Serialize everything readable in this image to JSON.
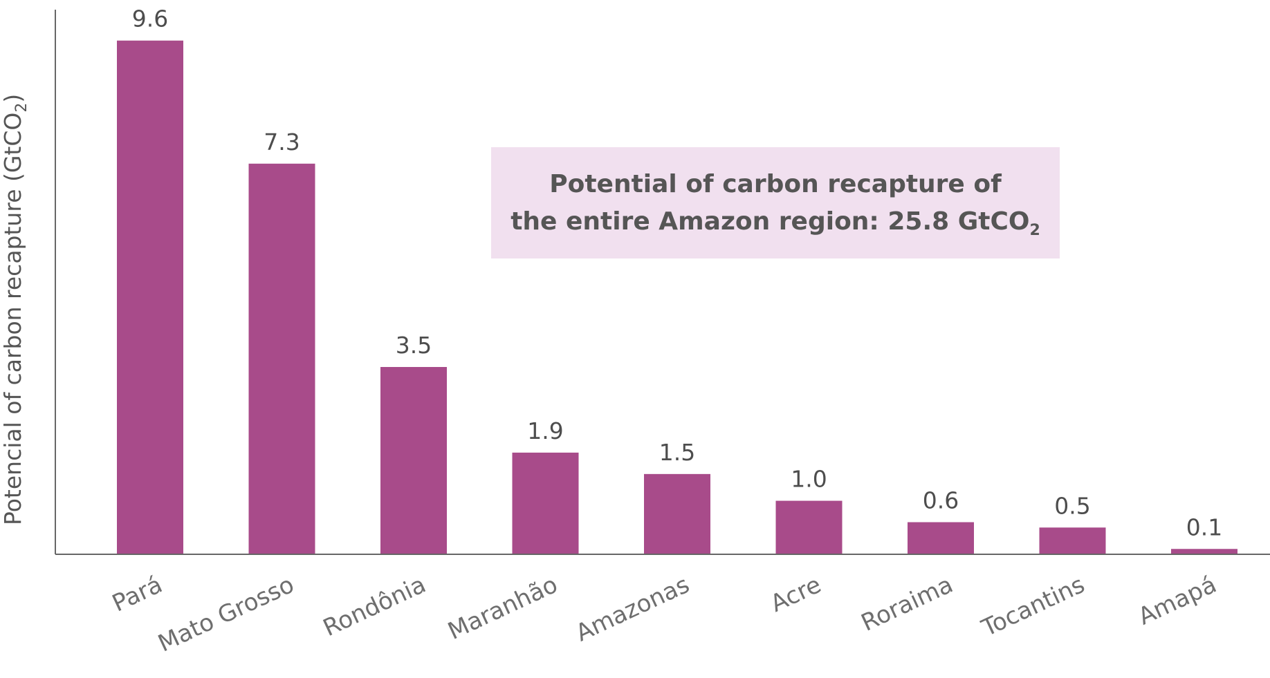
{
  "chart_data": {
    "type": "bar",
    "categories": [
      "Pará",
      "Mato Grosso",
      "Rondônia",
      "Maranhão",
      "Amazonas",
      "Acre",
      "Roraima",
      "Tocantins",
      "Amapá"
    ],
    "values": [
      9.6,
      7.3,
      3.5,
      1.9,
      1.5,
      1.0,
      0.6,
      0.5,
      0.1
    ],
    "value_labels": [
      "9.6",
      "7.3",
      "3.5",
      "1.9",
      "1.5",
      "1.0",
      "0.6",
      "0.5",
      "0.1"
    ],
    "title": "",
    "xlabel": "",
    "ylabel_main": "Potencial of carbon recapture (GtCO",
    "ylabel_sub": "2",
    "ylabel_close": ")",
    "ylim": [
      0,
      10.1
    ],
    "grid": false,
    "bar_color": "#a84b8a",
    "axis_color": "#666666"
  },
  "annotation": {
    "line1": "Potential of carbon recapture of",
    "line2_main": "the entire Amazon region: 25.8 GtCO",
    "line2_sub": "2",
    "background": "#f1e0ef"
  }
}
